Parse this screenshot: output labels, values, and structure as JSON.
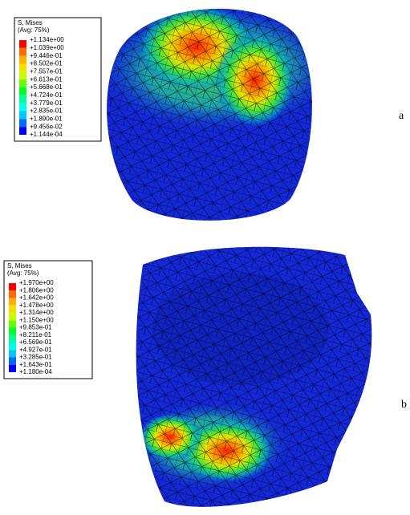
{
  "panels": [
    {
      "legend_title": "S, Mises",
      "legend_subtitle": "(Avg: 75%)",
      "legend_labels": [
        "+1.134e+00",
        "+1.039e+00",
        "+9.446e-01",
        "+8.502e-01",
        "+7.557e-01",
        "+6.613e-01",
        "+5.668e-01",
        "+4.724e-01",
        "+3.779e-01",
        "+2.835e-01",
        "+1.890e-01",
        "+9.456e-02",
        "+1.144e-04"
      ],
      "panel_label": "a"
    },
    {
      "legend_title": "S, Mises",
      "legend_subtitle": "(Avg: 75%)",
      "legend_labels": [
        "+1.970e+00",
        "+1.806e+00",
        "+1.642e+00",
        "+1.478e+00",
        "+1.314e+00",
        "+1.150e+00",
        "+9.853e-01",
        "+8.211e-01",
        "+6.569e-01",
        "+4.927e-01",
        "+3.285e-01",
        "+1.643e-01",
        "+1.180e-04"
      ],
      "panel_label": "b"
    }
  ]
}
